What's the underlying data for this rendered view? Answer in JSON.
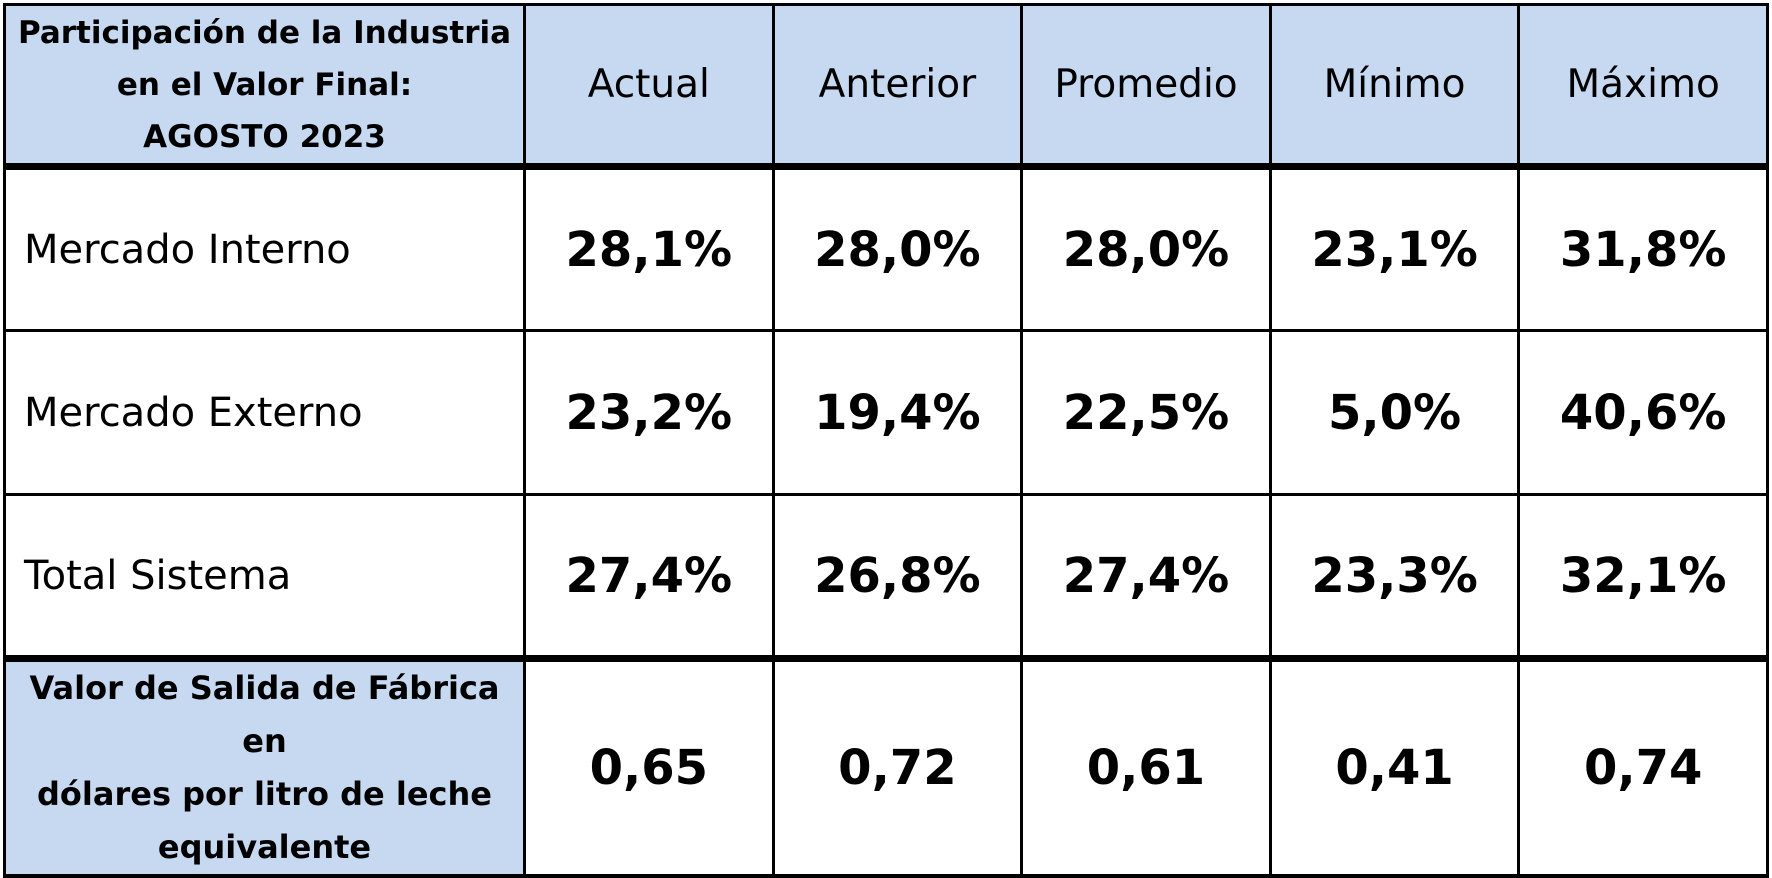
{
  "chart_data": {
    "type": "table",
    "title_lines": [
      "Participación de la Industria",
      "en el Valor Final:",
      "AGOSTO 2023"
    ],
    "columns": [
      "Actual",
      "Anterior",
      "Promedio",
      "Mínimo",
      "Máximo"
    ],
    "rows": [
      {
        "label": "Mercado Interno",
        "values": [
          "28,1%",
          "28,0%",
          "28,0%",
          "23,1%",
          "31,8%"
        ]
      },
      {
        "label": "Mercado Externo",
        "values": [
          "23,2%",
          "19,4%",
          "22,5%",
          "5,0%",
          "40,6%"
        ]
      },
      {
        "label": "Total Sistema",
        "values": [
          "27,4%",
          "26,8%",
          "27,4%",
          "23,3%",
          "32,1%"
        ]
      }
    ],
    "usd_row": {
      "label_lines": [
        "Valor de Salida de Fábrica en",
        "dólares por litro de leche",
        "equivalente"
      ],
      "values": [
        "0,65",
        "0,72",
        "0,61",
        "0,41",
        "0,74"
      ]
    }
  },
  "colors": {
    "header_background": "#c6d9f1",
    "border": "#000000",
    "text": "#000000",
    "background": "#ffffff"
  }
}
